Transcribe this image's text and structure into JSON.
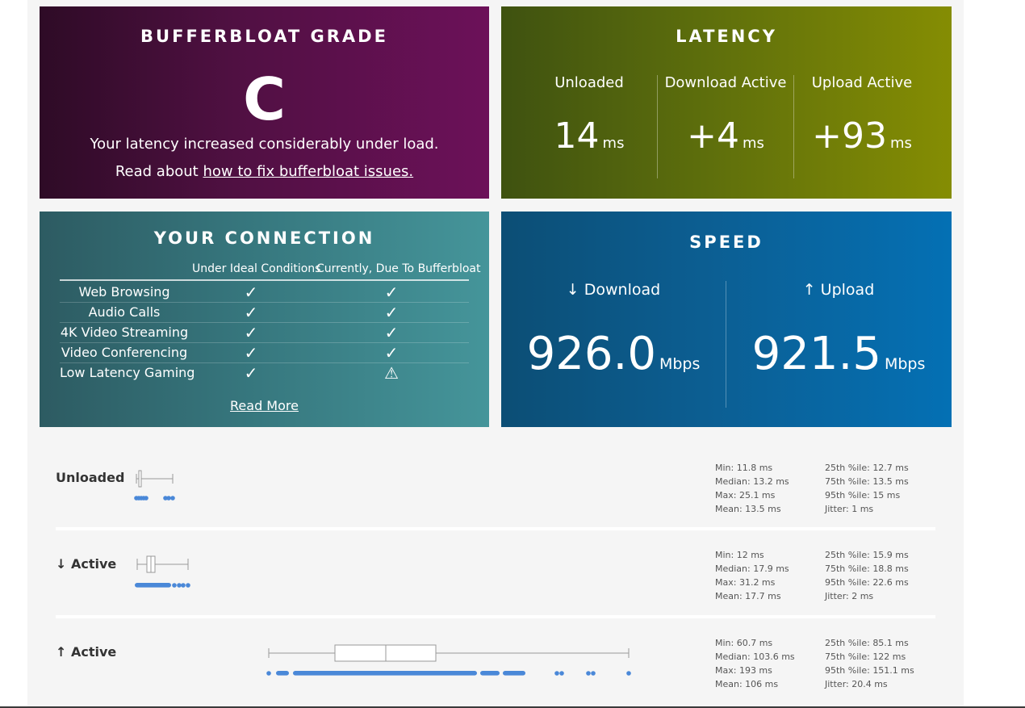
{
  "grade_card": {
    "title": "BUFFERBLOAT GRADE",
    "grade": "C",
    "description": "Your latency increased considerably under load.",
    "link_prefix": "Read about ",
    "link_text": "how to fix bufferbloat issues."
  },
  "latency_card": {
    "title": "LATENCY",
    "columns": [
      {
        "label": "Unloaded",
        "value": "14",
        "unit": "ms"
      },
      {
        "label": "Download Active",
        "value": "+4",
        "unit": "ms"
      },
      {
        "label": "Upload Active",
        "value": "+93",
        "unit": "ms"
      }
    ]
  },
  "connection_card": {
    "title": "YOUR CONNECTION",
    "col_ideal": "Under Ideal Conditions",
    "col_current": "Currently, Due To Bufferbloat",
    "rows": [
      {
        "name": "Web Browsing",
        "ideal": "✓",
        "current": "✓"
      },
      {
        "name": "Audio Calls",
        "ideal": "✓",
        "current": "✓"
      },
      {
        "name": "4K Video Streaming",
        "ideal": "✓",
        "current": "✓"
      },
      {
        "name": "Video Conferencing",
        "ideal": "✓",
        "current": "✓"
      },
      {
        "name": "Low Latency Gaming",
        "ideal": "✓",
        "current": "⚠"
      }
    ],
    "read_more": "Read More"
  },
  "speed_card": {
    "title": "SPEED",
    "download": {
      "label": "↓ Download",
      "value": "926.0",
      "unit": "Mbps"
    },
    "upload": {
      "label": "↑ Upload",
      "value": "921.5",
      "unit": "Mbps"
    }
  },
  "distributions": [
    {
      "label": "Unloaded",
      "stats_left": [
        "Min: 11.8 ms",
        "Median: 13.2 ms",
        "Max: 25.1 ms",
        "Mean: 13.5 ms"
      ],
      "stats_right": [
        "25th %ile: 12.7 ms",
        "75th %ile: 13.5 ms",
        "95th %ile: 15 ms",
        "Jitter: 1 ms"
      ]
    },
    {
      "label": "↓ Active",
      "stats_left": [
        "Min: 12 ms",
        "Median: 17.9 ms",
        "Max: 31.2 ms",
        "Mean: 17.7 ms"
      ],
      "stats_right": [
        "25th %ile: 15.9 ms",
        "75th %ile: 18.8 ms",
        "95th %ile: 22.6 ms",
        "Jitter: 2 ms"
      ]
    },
    {
      "label": "↑ Active",
      "stats_left": [
        "Min: 60.7 ms",
        "Median: 103.6 ms",
        "Max: 193 ms",
        "Mean: 106 ms"
      ],
      "stats_right": [
        "25th %ile: 85.1 ms",
        "75th %ile: 122 ms",
        "95th %ile: 151.1 ms",
        "Jitter: 20.4 ms"
      ]
    }
  ]
}
